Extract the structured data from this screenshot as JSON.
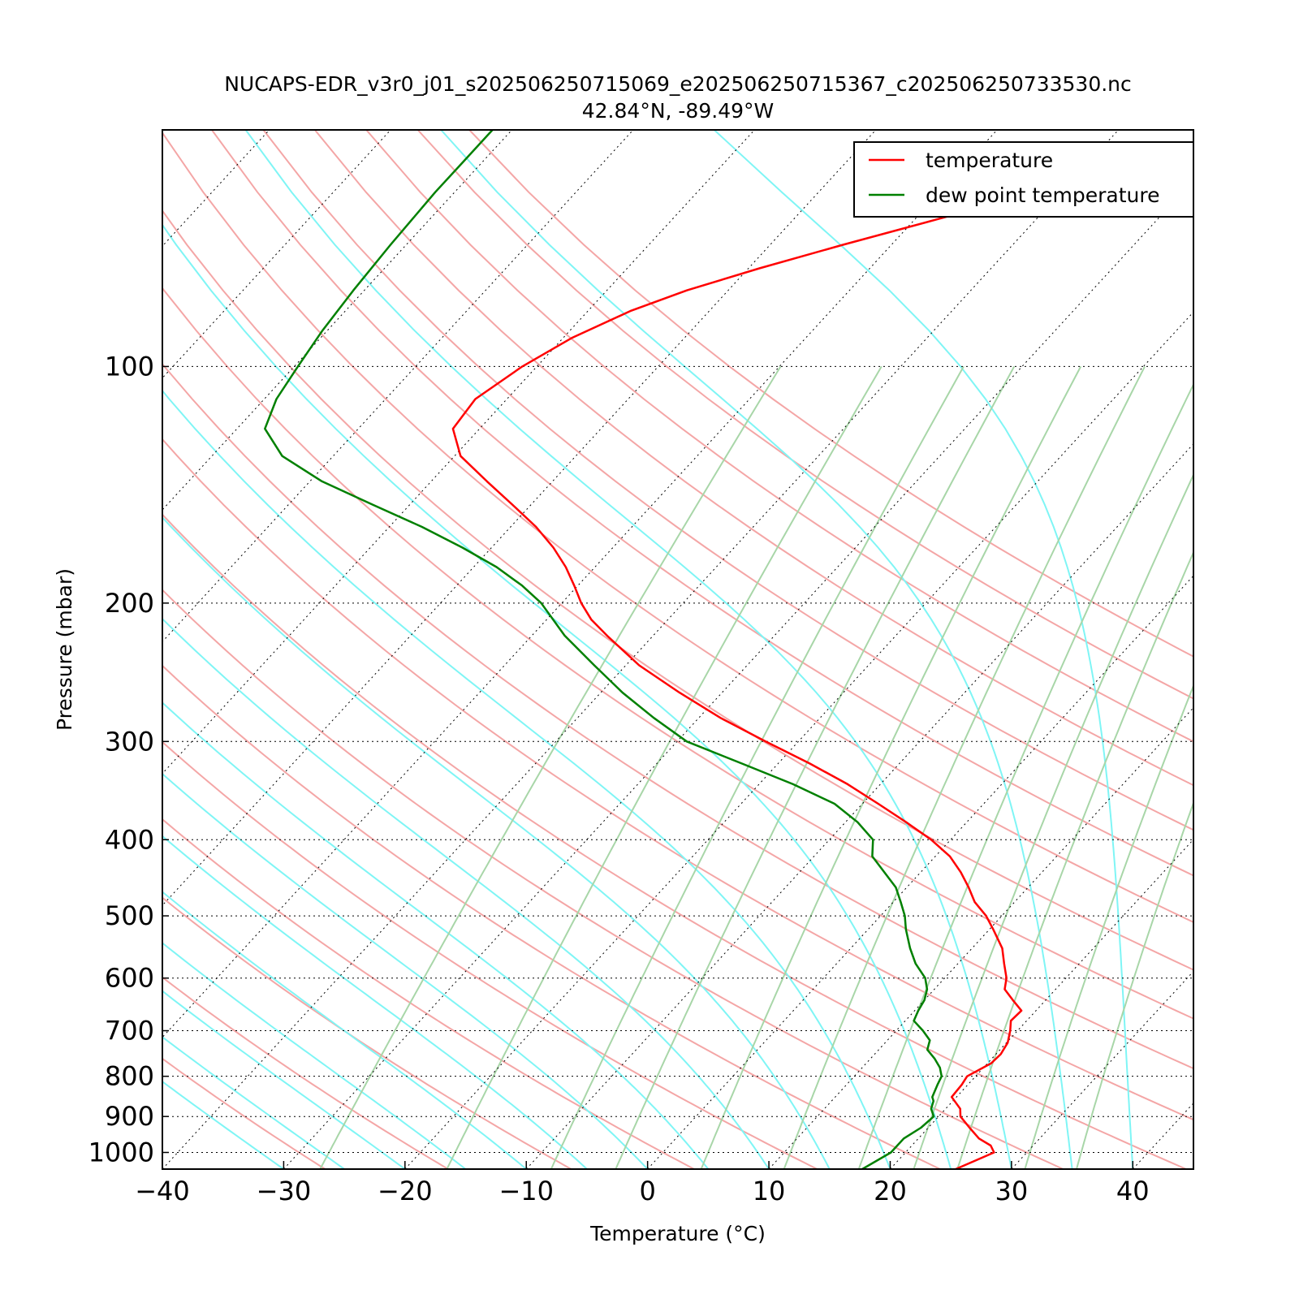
{
  "chart_data": {
    "type": "line",
    "subtype": "skew-t log-p diagram",
    "title": "NUCAPS-EDR_v3r0_j01_s202506250715069_e202506250715367_c202506250733530.nc",
    "subtitle": "42.84°N, -89.49°W",
    "xlabel": "Temperature (°C)",
    "ylabel": "Pressure (mbar)",
    "xlim": [
      -40,
      45
    ],
    "ylim": [
      1050,
      50
    ],
    "y_scale": "log",
    "x_ticks": [
      -40,
      -30,
      -20,
      -10,
      0,
      10,
      20,
      30,
      40
    ],
    "x_tick_labels": [
      "−40",
      "−30",
      "−20",
      "−10",
      "0",
      "10",
      "20",
      "30",
      "40"
    ],
    "y_ticks": [
      100,
      200,
      300,
      400,
      500,
      600,
      700,
      800,
      900,
      1000
    ],
    "y_tick_labels": [
      "100",
      "200",
      "300",
      "400",
      "500",
      "600",
      "700",
      "800",
      "900",
      "1000"
    ],
    "grid": "horizontal dotted at labeled pressures; skewed dotted isotherms",
    "background_lines": {
      "dry_adiabats_color": "#f4a6a6",
      "moist_adiabats_color": "#7ff5f5",
      "mixing_ratio_color": "#a8d6a8",
      "isotherm_color": "#000000"
    },
    "legend": {
      "placement": "top-right"
    },
    "series": [
      {
        "name": "temperature",
        "color": "#ff0000",
        "points": [
          [
            1050,
            25.4
          ],
          [
            1000,
            27.3
          ],
          [
            980,
            26.5
          ],
          [
            960,
            25.0
          ],
          [
            930,
            23.4
          ],
          [
            900,
            21.8
          ],
          [
            880,
            21.2
          ],
          [
            850,
            19.6
          ],
          [
            820,
            19.5
          ],
          [
            800,
            19.3
          ],
          [
            770,
            20.3
          ],
          [
            750,
            20.4
          ],
          [
            725,
            20.1
          ],
          [
            700,
            19.4
          ],
          [
            680,
            18.7
          ],
          [
            660,
            18.8
          ],
          [
            640,
            17.3
          ],
          [
            620,
            15.8
          ],
          [
            600,
            15.1
          ],
          [
            575,
            13.8
          ],
          [
            550,
            12.5
          ],
          [
            520,
            10.3
          ],
          [
            500,
            8.7
          ],
          [
            480,
            6.7
          ],
          [
            460,
            5.1
          ],
          [
            440,
            3.3
          ],
          [
            420,
            1.2
          ],
          [
            400,
            -1.6
          ],
          [
            380,
            -5.0
          ],
          [
            360,
            -8.7
          ],
          [
            340,
            -12.7
          ],
          [
            320,
            -17.4
          ],
          [
            300,
            -22.7
          ],
          [
            280,
            -28.2
          ],
          [
            260,
            -33.5
          ],
          [
            240,
            -38.9
          ],
          [
            220,
            -43.8
          ],
          [
            210,
            -46.3
          ],
          [
            200,
            -48.4
          ],
          [
            190,
            -50.3
          ],
          [
            180,
            -52.4
          ],
          [
            170,
            -54.9
          ],
          [
            160,
            -57.9
          ],
          [
            150,
            -61.5
          ],
          [
            140,
            -65.4
          ],
          [
            130,
            -69.5
          ],
          [
            120,
            -72.2
          ],
          [
            110,
            -72.6
          ],
          [
            100,
            -71.2
          ],
          [
            92,
            -69.3
          ],
          [
            85,
            -66.5
          ],
          [
            80,
            -63.4
          ],
          [
            75,
            -59.1
          ],
          [
            70,
            -54.0
          ],
          [
            65,
            -48.2
          ],
          [
            60,
            -42.0
          ],
          [
            56,
            -36.6
          ],
          [
            53,
            -32.8
          ],
          [
            50,
            -30.0
          ]
        ]
      },
      {
        "name": "dew point temperature",
        "color": "#008000",
        "points": [
          [
            1050,
            17.7
          ],
          [
            1000,
            18.8
          ],
          [
            980,
            18.8
          ],
          [
            960,
            18.8
          ],
          [
            930,
            19.4
          ],
          [
            900,
            19.6
          ],
          [
            880,
            18.8
          ],
          [
            860,
            18.4
          ],
          [
            850,
            18.0
          ],
          [
            820,
            17.5
          ],
          [
            800,
            17.2
          ],
          [
            780,
            16.4
          ],
          [
            760,
            15.3
          ],
          [
            740,
            14.0
          ],
          [
            720,
            13.5
          ],
          [
            700,
            12.2
          ],
          [
            680,
            10.7
          ],
          [
            660,
            10.3
          ],
          [
            640,
            10.0
          ],
          [
            620,
            9.4
          ],
          [
            600,
            8.4
          ],
          [
            575,
            6.5
          ],
          [
            550,
            4.9
          ],
          [
            520,
            3.1
          ],
          [
            500,
            2.0
          ],
          [
            480,
            0.6
          ],
          [
            460,
            -0.9
          ],
          [
            440,
            -3.0
          ],
          [
            420,
            -5.2
          ],
          [
            400,
            -6.4
          ],
          [
            380,
            -9.0
          ],
          [
            360,
            -12.3
          ],
          [
            340,
            -17.2
          ],
          [
            320,
            -23.0
          ],
          [
            300,
            -29.2
          ],
          [
            280,
            -33.7
          ],
          [
            260,
            -38.2
          ],
          [
            240,
            -42.6
          ],
          [
            220,
            -47.3
          ],
          [
            200,
            -51.7
          ],
          [
            190,
            -54.6
          ],
          [
            180,
            -58.1
          ],
          [
            170,
            -62.4
          ],
          [
            160,
            -67.3
          ],
          [
            150,
            -73.0
          ],
          [
            140,
            -79.0
          ],
          [
            130,
            -84.2
          ],
          [
            120,
            -87.7
          ],
          [
            110,
            -89.0
          ],
          [
            100,
            -89.7
          ],
          [
            90,
            -90.4
          ],
          [
            80,
            -90.9
          ],
          [
            70,
            -91.3
          ],
          [
            60,
            -91.6
          ],
          [
            55,
            -91.6
          ],
          [
            50,
            -91.6
          ]
        ]
      }
    ]
  }
}
